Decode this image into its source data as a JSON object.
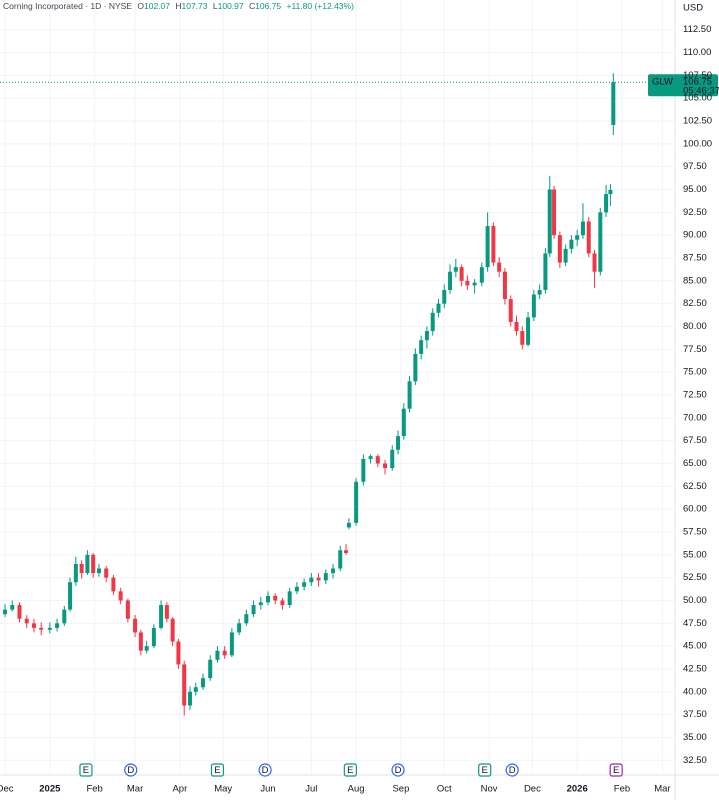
{
  "chart_data": {
    "type": "candlestick",
    "header": {
      "title": "Corning Incorporated · 1D · NYSE",
      "ohlc_letters": [
        "O",
        "H",
        "L",
        "C"
      ],
      "change": "+11.80 (+12.43%)"
    },
    "currency": "USD",
    "symbol": "GLW",
    "countdown": "05:46:37",
    "up_color": "#089981",
    "down_color": "#f23645",
    "grid": true,
    "x": [
      0,
      5,
      10,
      15,
      20,
      25,
      31,
      36,
      41,
      45,
      49,
      53,
      57,
      61,
      65,
      70,
      75,
      80,
      85,
      90,
      94,
      98,
      103,
      108,
      112,
      116,
      120,
      124,
      128,
      132,
      137,
      142,
      147,
      152,
      157,
      162,
      167,
      172,
      177,
      182,
      187,
      192,
      197,
      202,
      207,
      212,
      217,
      222,
      227,
      232,
      236,
      238,
      243,
      248,
      253,
      258,
      263,
      268,
      272,
      276,
      280,
      284,
      288,
      292,
      296,
      300,
      304,
      308,
      312,
      316,
      320,
      325,
      330,
      334,
      338,
      342,
      346,
      350,
      354,
      358,
      362,
      366,
      370,
      374,
      377,
      380,
      384,
      388,
      392,
      396,
      400,
      404,
      408,
      412,
      416,
      419,
      421
    ],
    "open": [
      48.5,
      49,
      49.5,
      48,
      47.5,
      47,
      46.8,
      47,
      47.5,
      49,
      52,
      54,
      53,
      55,
      53,
      53.5,
      52.5,
      51,
      50,
      48,
      46.5,
      44.5,
      45,
      47,
      49.5,
      48,
      45.5,
      43,
      38.5,
      40,
      40.5,
      41.5,
      43.5,
      44.5,
      44,
      46.5,
      47.5,
      48.5,
      49.5,
      49.8,
      50.5,
      50,
      49.5,
      51,
      51.5,
      52,
      52.5,
      52.2,
      53,
      53.5,
      55.5,
      58,
      58.5,
      63,
      65.5,
      65.8,
      65,
      64.5,
      66.5,
      68,
      71,
      74,
      77,
      78.5,
      79.5,
      81.5,
      82.5,
      84,
      86,
      86.5,
      85,
      84.5,
      84.8,
      86.5,
      91,
      87,
      86,
      83,
      80.5,
      79.5,
      78,
      81,
      83.5,
      84,
      88,
      95,
      90,
      87,
      88.5,
      89.5,
      90,
      91.5,
      88,
      86,
      92.5,
      94.5,
      102.07
    ],
    "high": [
      49.6,
      50,
      49.8,
      48.4,
      48,
      47.6,
      47.6,
      48,
      49.4,
      52.5,
      54.8,
      54.4,
      55.5,
      55.2,
      54,
      53.8,
      52.8,
      51.4,
      50.2,
      48.4,
      46.8,
      45.6,
      47.4,
      50,
      49.8,
      48.2,
      45.8,
      43.4,
      40.6,
      41,
      42,
      44,
      45,
      45,
      47,
      48,
      49,
      50,
      50.4,
      51,
      50.8,
      50.3,
      51.4,
      52,
      52.4,
      53,
      53,
      53.4,
      54,
      56,
      56.2,
      59,
      63.4,
      66,
      66,
      66,
      65.4,
      67,
      68.6,
      71.6,
      74.6,
      77.6,
      79,
      80,
      82,
      83,
      84.6,
      86.8,
      87.4,
      86.8,
      85.6,
      85.2,
      87,
      92.5,
      91.4,
      87.6,
      86.4,
      83.4,
      81.2,
      80,
      81.6,
      84,
      84.6,
      88.6,
      96.5,
      95.4,
      90.4,
      89,
      90,
      90.6,
      93.5,
      92,
      88.4,
      93,
      95.5,
      95.6,
      107.73
    ],
    "low": [
      48.2,
      48.8,
      47.6,
      47,
      46.5,
      46.2,
      46.4,
      46.6,
      47.2,
      48.8,
      51.6,
      52.4,
      52.8,
      52.5,
      52.6,
      52,
      50.6,
      49.6,
      47.6,
      46,
      44,
      44.2,
      44.8,
      46.8,
      47.6,
      45,
      42.5,
      37.4,
      38,
      39.6,
      40.2,
      41.2,
      43.2,
      43.6,
      43.8,
      46.2,
      47.2,
      48.2,
      49,
      49.5,
      49.6,
      49,
      49.2,
      50.7,
      51.1,
      51.6,
      51.5,
      51.8,
      52.4,
      53.2,
      55,
      57.8,
      58.2,
      62.6,
      65,
      64.6,
      63.8,
      64.2,
      66,
      67.6,
      70.6,
      73.6,
      76.4,
      77.6,
      79,
      81,
      82,
      83.6,
      85.4,
      84.4,
      84,
      83.6,
      84.4,
      86,
      86.6,
      85.4,
      82.4,
      80,
      79,
      77.5,
      77.8,
      80.6,
      83,
      83.6,
      87.6,
      89.6,
      86.4,
      86.6,
      88,
      88.8,
      89.6,
      87.6,
      84.2,
      85.6,
      92,
      93.2,
      100.97
    ],
    "close": [
      49,
      49.5,
      48,
      47.5,
      47,
      46.8,
      47,
      47.5,
      49,
      52,
      54,
      53,
      55,
      53,
      53.5,
      52.5,
      51,
      50,
      48,
      46.5,
      44.5,
      45,
      47,
      49.5,
      48,
      45.5,
      43,
      38.5,
      40,
      40.5,
      41.5,
      43.5,
      44.5,
      44,
      46.5,
      47.5,
      48.5,
      49.5,
      49.8,
      50.5,
      50,
      49.5,
      51,
      51.5,
      52,
      52.5,
      52.2,
      53,
      53.5,
      55.5,
      55.2,
      58.5,
      63,
      65.5,
      65.8,
      65,
      64.5,
      66.5,
      68,
      71,
      74,
      77,
      78.5,
      79.5,
      81.5,
      82.5,
      84,
      86,
      86.5,
      85,
      84.5,
      84.8,
      86.5,
      91,
      87,
      86,
      83,
      80.5,
      79.5,
      78,
      81,
      83.5,
      84,
      88,
      95,
      90,
      87,
      88.5,
      89.5,
      90,
      91.5,
      88,
      86,
      92.5,
      94.5,
      94.95,
      106.75
    ],
    "xlim": [
      -3.5,
      463.7
    ],
    "xticks": [
      {
        "value": 0,
        "label": "Dec"
      },
      {
        "value": 31,
        "label": "2025"
      },
      {
        "value": 62,
        "label": "Feb"
      },
      {
        "value": 90,
        "label": "Mar"
      },
      {
        "value": 121,
        "label": "Apr"
      },
      {
        "value": 151,
        "label": "May"
      },
      {
        "value": 182,
        "label": "Jun"
      },
      {
        "value": 212,
        "label": "Jul"
      },
      {
        "value": 243,
        "label": "Aug"
      },
      {
        "value": 274,
        "label": "Sep"
      },
      {
        "value": 304,
        "label": "Oct"
      },
      {
        "value": 335,
        "label": "Nov"
      },
      {
        "value": 365,
        "label": "Dec"
      },
      {
        "value": 396,
        "label": "2026"
      },
      {
        "value": 427,
        "label": "Feb"
      },
      {
        "value": 455,
        "label": "Mar"
      }
    ],
    "ylim": [
      31,
      114
    ],
    "yticks": [
      {
        "value": 32.5,
        "label": "32.50"
      },
      {
        "value": 35,
        "label": "35.00"
      },
      {
        "value": 37.5,
        "label": "37.50"
      },
      {
        "value": 40,
        "label": "40.00"
      },
      {
        "value": 42.5,
        "label": "42.50"
      },
      {
        "value": 45,
        "label": "45.00"
      },
      {
        "value": 47.5,
        "label": "47.50"
      },
      {
        "value": 50,
        "label": "50.00"
      },
      {
        "value": 52.5,
        "label": "52.50"
      },
      {
        "value": 55,
        "label": "55.00"
      },
      {
        "value": 57.5,
        "label": "57.50"
      },
      {
        "value": 60,
        "label": "60.00"
      },
      {
        "value": 62.5,
        "label": "62.50"
      },
      {
        "value": 65,
        "label": "65.00"
      },
      {
        "value": 67.5,
        "label": "67.50"
      },
      {
        "value": 70,
        "label": "70.00"
      },
      {
        "value": 72.5,
        "label": "72.50"
      },
      {
        "value": 75,
        "label": "75.00"
      },
      {
        "value": 77.5,
        "label": "77.50"
      },
      {
        "value": 80,
        "label": "80.00"
      },
      {
        "value": 82.5,
        "label": "82.50"
      },
      {
        "value": 85,
        "label": "85.00"
      },
      {
        "value": 87.5,
        "label": "87.50"
      },
      {
        "value": 90,
        "label": "90.00"
      },
      {
        "value": 92.5,
        "label": "92.50"
      },
      {
        "value": 95,
        "label": "95.00"
      },
      {
        "value": 97.5,
        "label": "97.50"
      },
      {
        "value": 100,
        "label": "100.00"
      },
      {
        "value": 102.5,
        "label": "102.50"
      },
      {
        "value": 105,
        "label": "105.00"
      },
      {
        "value": 107.5,
        "label": "107.50"
      },
      {
        "value": 110,
        "label": "110.00"
      },
      {
        "value": 112.5,
        "label": "112.50"
      }
    ],
    "events": [
      {
        "x": 56,
        "label": "E",
        "color": "#089981"
      },
      {
        "x": 87,
        "label": "D",
        "color": "#2962ff"
      },
      {
        "x": 147,
        "label": "E",
        "color": "#089981"
      },
      {
        "x": 180,
        "label": "D",
        "color": "#2962ff"
      },
      {
        "x": 239,
        "label": "E",
        "color": "#089981"
      },
      {
        "x": 272,
        "label": "D",
        "color": "#2962ff"
      },
      {
        "x": 332,
        "label": "E",
        "color": "#089981"
      },
      {
        "x": 351,
        "label": "D",
        "color": "#2962ff"
      },
      {
        "x": 423,
        "label": "E",
        "color": "#9c27b0"
      }
    ]
  }
}
